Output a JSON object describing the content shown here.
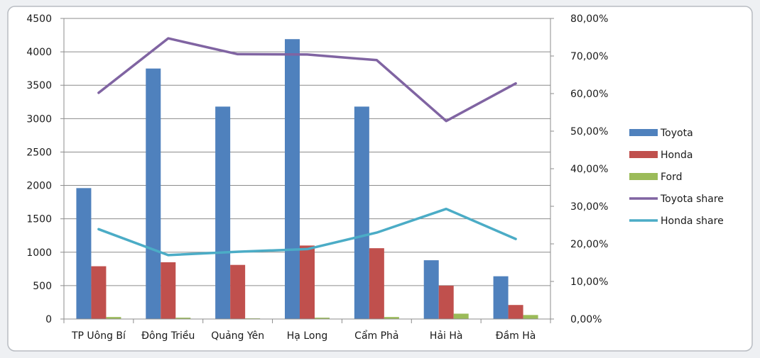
{
  "chart_data": {
    "type": "bar",
    "categories": [
      "TP Uông Bí",
      "Đông Triều",
      "Quảng Yên",
      "Hạ Long",
      "Cẩm Phả",
      "Hải Hà",
      "Đầm Hà"
    ],
    "bar_series": [
      {
        "name": "Toyota",
        "color": "#4f81bd",
        "values": [
          1960,
          3750,
          3180,
          4190,
          3180,
          880,
          640
        ]
      },
      {
        "name": "Honda",
        "color": "#c0504d",
        "values": [
          790,
          850,
          810,
          1100,
          1060,
          500,
          210
        ]
      },
      {
        "name": "Ford",
        "color": "#9bbb59",
        "values": [
          30,
          20,
          10,
          20,
          30,
          80,
          60
        ]
      }
    ],
    "line_series": [
      {
        "name": "Toyota share",
        "color": "#8064a2",
        "axis": "right",
        "values": [
          60.2,
          74.7,
          70.5,
          70.4,
          68.9,
          52.7,
          62.7
        ]
      },
      {
        "name": "Honda share",
        "color": "#4bacc6",
        "axis": "right",
        "values": [
          23.9,
          17.0,
          17.9,
          18.6,
          23.0,
          29.3,
          21.3
        ]
      }
    ],
    "left_axis": {
      "min": 0,
      "max": 4500,
      "ticks": [
        "0",
        "500",
        "1000",
        "1500",
        "2000",
        "2500",
        "3000",
        "3500",
        "4000",
        "4500"
      ]
    },
    "right_axis": {
      "min": 0,
      "max": 80,
      "ticks": [
        "0,00%",
        "10,00%",
        "20,00%",
        "30,00%",
        "40,00%",
        "50,00%",
        "60,00%",
        "70,00%",
        "80,00%"
      ]
    },
    "grid": true,
    "legend_position": "right",
    "title": "",
    "xlabel": "",
    "ylabel": ""
  }
}
